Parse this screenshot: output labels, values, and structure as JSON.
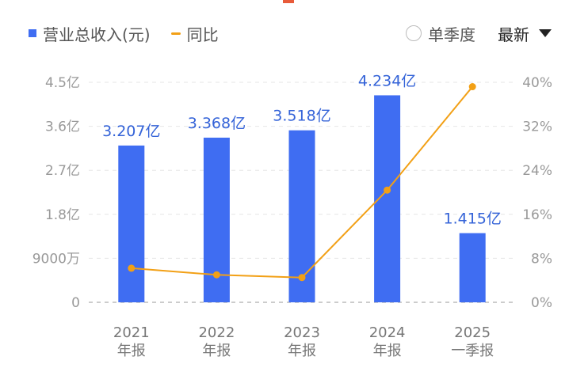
{
  "legend": {
    "revenue_label": "营业总收入(元)",
    "yoy_label": "同比"
  },
  "controls": {
    "single_quarter_label": "单季度",
    "latest_label": "最新"
  },
  "colors": {
    "bar": "#3f6df2",
    "line": "#f2a016",
    "label": "#3463d8"
  },
  "chart_data": {
    "type": "bar",
    "categories": [
      [
        "2021",
        "年报"
      ],
      [
        "2022",
        "年报"
      ],
      [
        "2023",
        "年报"
      ],
      [
        "2024",
        "年报"
      ],
      [
        "2025",
        "一季报"
      ]
    ],
    "series": [
      {
        "name": "营业总收入(元)",
        "type": "bar",
        "axis": "left",
        "values": [
          320700000,
          336800000,
          351800000,
          423400000,
          141500000
        ],
        "labels": [
          "3.207亿",
          "3.368亿",
          "3.518亿",
          "4.234亿",
          "1.415亿"
        ]
      },
      {
        "name": "同比",
        "type": "line",
        "axis": "right",
        "values": [
          6.2,
          5.0,
          4.5,
          20.4,
          39.2
        ]
      }
    ],
    "y_left": {
      "range": [
        0,
        450000000
      ],
      "ticks": [
        0,
        90000000,
        180000000,
        270000000,
        360000000,
        450000000
      ],
      "tick_labels": [
        "0",
        "9000万",
        "1.8亿",
        "2.7亿",
        "3.6亿",
        "4.5亿"
      ]
    },
    "y_right": {
      "range": [
        0,
        40
      ],
      "ticks": [
        0,
        8,
        16,
        24,
        32,
        40
      ],
      "tick_labels": [
        "0%",
        "8%",
        "16%",
        "24%",
        "32%",
        "40%"
      ]
    },
    "grid": true
  }
}
